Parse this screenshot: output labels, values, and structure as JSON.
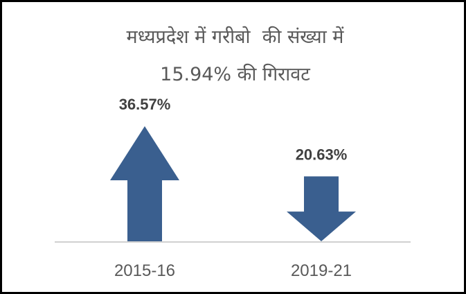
{
  "chart_data": {
    "type": "bar",
    "title_lines": [
      "मध्यप्रदेश में गरीबो  की संख्या में",
      "15.94% की गिरावट"
    ],
    "categories": [
      "2015-16",
      "2019-21"
    ],
    "values": [
      36.57,
      20.63
    ],
    "data_labels": [
      "36.57%",
      "20.63%"
    ],
    "directions": [
      "up",
      "down"
    ],
    "xlabel": "",
    "ylabel": "",
    "grid": false,
    "colors": {
      "arrow": "#3A5F8F",
      "label": "#404040",
      "axis_text": "#595959",
      "baseline": "#D0D0D0",
      "title": "#595959"
    }
  }
}
